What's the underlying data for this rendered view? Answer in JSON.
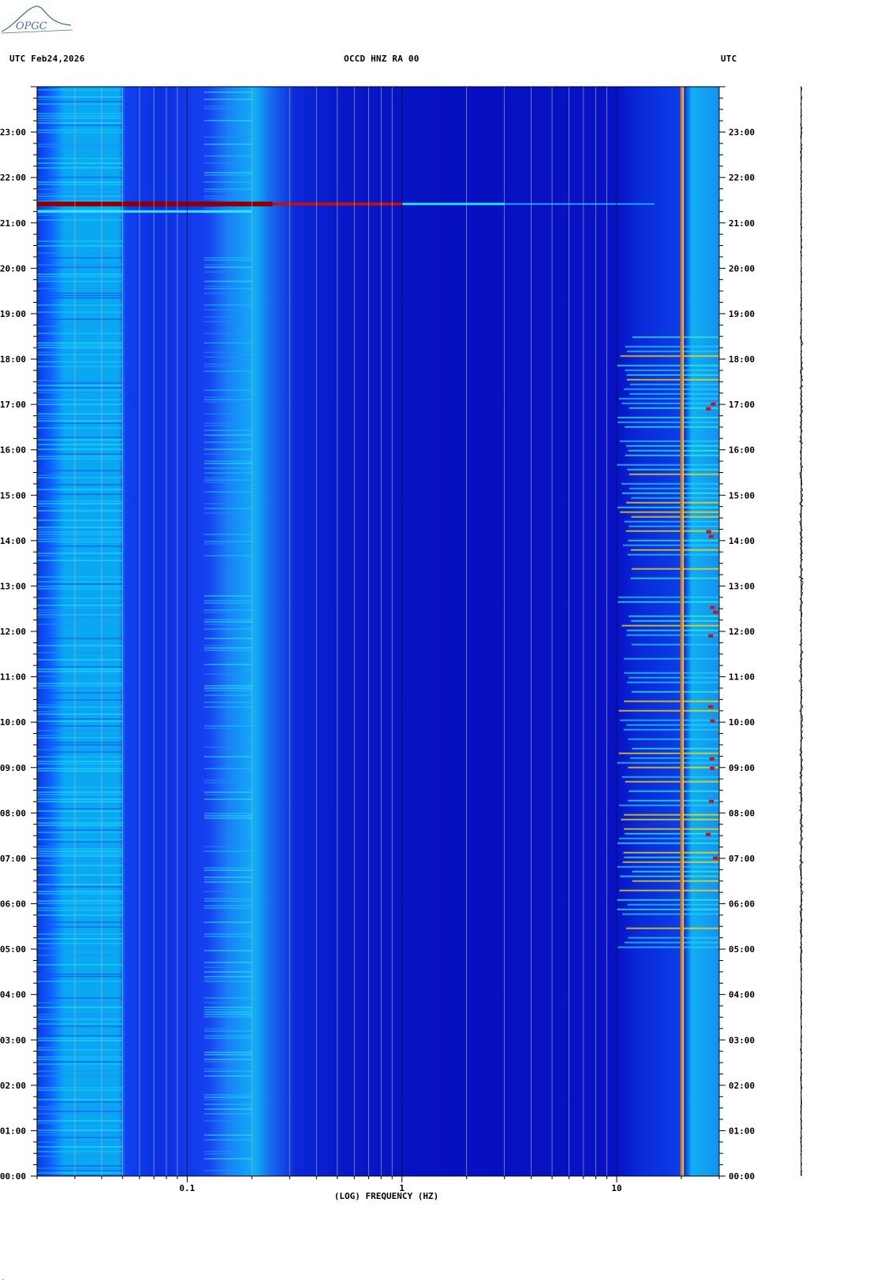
{
  "header": {
    "left": "UTC  Feb24,2026",
    "center": "OCCD HNZ RA 00",
    "right": "UTC"
  },
  "logo": {
    "text": "OPGC"
  },
  "chart_data": {
    "type": "heatmap",
    "title": "OCCD HNZ RA 00",
    "date": "Feb24,2026",
    "xlabel": "(LOG) FREQUENCY (HZ)",
    "ylabel": "UTC",
    "x_scale": "log",
    "xlim": [
      0.02,
      30
    ],
    "x_ticks": [
      {
        "value": 0.1,
        "label": "0.1"
      },
      {
        "value": 1,
        "label": "1"
      },
      {
        "value": 10,
        "label": "10"
      }
    ],
    "ylim_hours": [
      0,
      24
    ],
    "y_ticks": [
      "00:00",
      "01:00",
      "02:00",
      "03:00",
      "04:00",
      "05:00",
      "06:00",
      "07:00",
      "08:00",
      "09:00",
      "10:00",
      "11:00",
      "12:00",
      "13:00",
      "14:00",
      "15:00",
      "16:00",
      "17:00",
      "18:00",
      "19:00",
      "20:00",
      "21:00",
      "22:00",
      "23:00"
    ],
    "features": [
      {
        "kind": "event",
        "time_utc": "21:25",
        "freq_min_hz": 0.02,
        "freq_max_hz": 15,
        "note": "strong broadband energy, strongest below 1 Hz"
      },
      {
        "kind": "line",
        "freq_hz": 20,
        "time_start": "00:00",
        "time_end": "24:00",
        "note": "persistent narrow spectral line"
      },
      {
        "kind": "band",
        "freq_min_hz": 10,
        "freq_max_hz": 30,
        "time_start": "05:00",
        "time_end": "18:30",
        "note": "daytime high-frequency noise"
      },
      {
        "kind": "band",
        "freq_min_hz": 0.02,
        "freq_max_hz": 0.05,
        "time_start": "00:00",
        "time_end": "24:00",
        "note": "elevated low-frequency background"
      },
      {
        "kind": "band",
        "freq_min_hz": 0.12,
        "freq_max_hz": 0.2,
        "time_start": "00:00",
        "time_end": "24:00",
        "note": "microseism band"
      }
    ],
    "colormap": [
      "#00008b",
      "#0000ff",
      "#0050ff",
      "#00a0ff",
      "#00e0ff",
      "#ffff00",
      "#ff8000",
      "#c00000",
      "#800000"
    ]
  }
}
